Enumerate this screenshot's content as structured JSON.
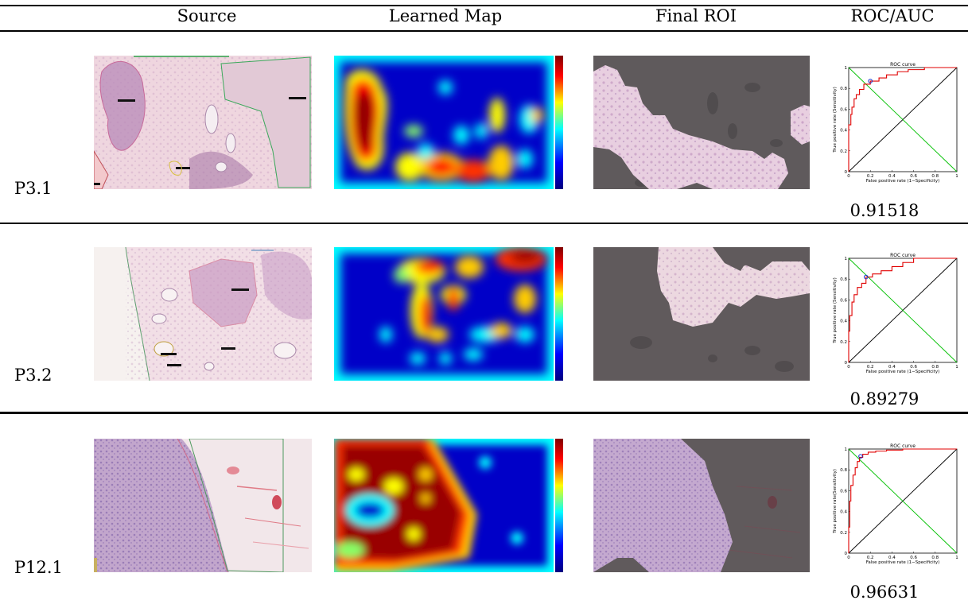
{
  "table": {
    "headers": [
      "Source",
      "Learned Map",
      "Final ROI",
      "ROC/AUC"
    ],
    "rows": [
      {
        "label": "P3.1",
        "auc": "0.91518"
      },
      {
        "label": "P3.2",
        "auc": "0.89279"
      },
      {
        "label": "P12.1",
        "auc": "0.96631"
      }
    ]
  },
  "roc_plot": {
    "title": "ROC curve",
    "xlabel": "False positive rate (1−Specificity)",
    "ylabel": "True positive rate (Sensitivity)",
    "ylabel_row3": "True positive rate(Sensitivity)",
    "ticks": [
      "0",
      "0.2",
      "0.4",
      "0.6",
      "0.8",
      "1"
    ]
  },
  "chart_data": [
    {
      "type": "line",
      "title": "ROC curve",
      "xlabel": "False positive rate (1−Specificity)",
      "ylabel": "True positive rate (Sensitivity)",
      "xlim": [
        0,
        1
      ],
      "ylim": [
        0,
        1
      ],
      "series": [
        {
          "x": [
            0,
            0,
            0.02,
            0.03,
            0.05,
            0.07,
            0.1,
            0.14,
            0.2,
            0.28,
            0.35,
            0.45,
            0.55,
            0.7,
            0.85,
            1
          ],
          "y": [
            0,
            0.45,
            0.55,
            0.62,
            0.7,
            0.74,
            0.79,
            0.84,
            0.87,
            0.9,
            0.93,
            0.96,
            0.98,
            1,
            1,
            1
          ]
        },
        {
          "x": [
            0,
            1
          ],
          "y": [
            0,
            1
          ]
        },
        {
          "x": [
            0,
            1
          ],
          "y": [
            1,
            0
          ]
        }
      ],
      "operating_point": {
        "x": 0.2,
        "y": 0.87
      },
      "auc": 0.91518
    },
    {
      "type": "line",
      "title": "ROC curve",
      "xlabel": "False positive rate (1−Specificity)",
      "ylabel": "True positive rate (Sensitivity)",
      "xlim": [
        0,
        1
      ],
      "ylim": [
        0,
        1
      ],
      "series": [
        {
          "x": [
            0,
            0,
            0.01,
            0.03,
            0.05,
            0.08,
            0.12,
            0.16,
            0.22,
            0.3,
            0.4,
            0.5,
            0.6,
            0.75,
            1
          ],
          "y": [
            0,
            0.3,
            0.45,
            0.58,
            0.65,
            0.72,
            0.76,
            0.82,
            0.85,
            0.88,
            0.92,
            0.96,
            1,
            1,
            1
          ]
        },
        {
          "x": [
            0,
            1
          ],
          "y": [
            0,
            1
          ]
        },
        {
          "x": [
            0,
            1
          ],
          "y": [
            1,
            0
          ]
        }
      ],
      "operating_point": {
        "x": 0.16,
        "y": 0.82
      },
      "auc": 0.89279
    },
    {
      "type": "line",
      "title": "ROC curve",
      "xlabel": "False positive rate (1−Specificity)",
      "ylabel": "True positive rate(Sensitivity)",
      "xlim": [
        0,
        1
      ],
      "ylim": [
        0,
        1
      ],
      "series": [
        {
          "x": [
            0,
            0,
            0.01,
            0.02,
            0.04,
            0.06,
            0.08,
            0.1,
            0.13,
            0.18,
            0.25,
            0.35,
            0.5,
            0.7,
            1
          ],
          "y": [
            0,
            0.25,
            0.5,
            0.65,
            0.75,
            0.82,
            0.88,
            0.92,
            0.95,
            0.97,
            0.98,
            0.99,
            1,
            1,
            1
          ]
        },
        {
          "x": [
            0,
            1
          ],
          "y": [
            0,
            1
          ]
        },
        {
          "x": [
            0,
            1
          ],
          "y": [
            1,
            0
          ]
        }
      ],
      "operating_point": {
        "x": 0.11,
        "y": 0.93
      },
      "auc": 0.96631
    }
  ]
}
